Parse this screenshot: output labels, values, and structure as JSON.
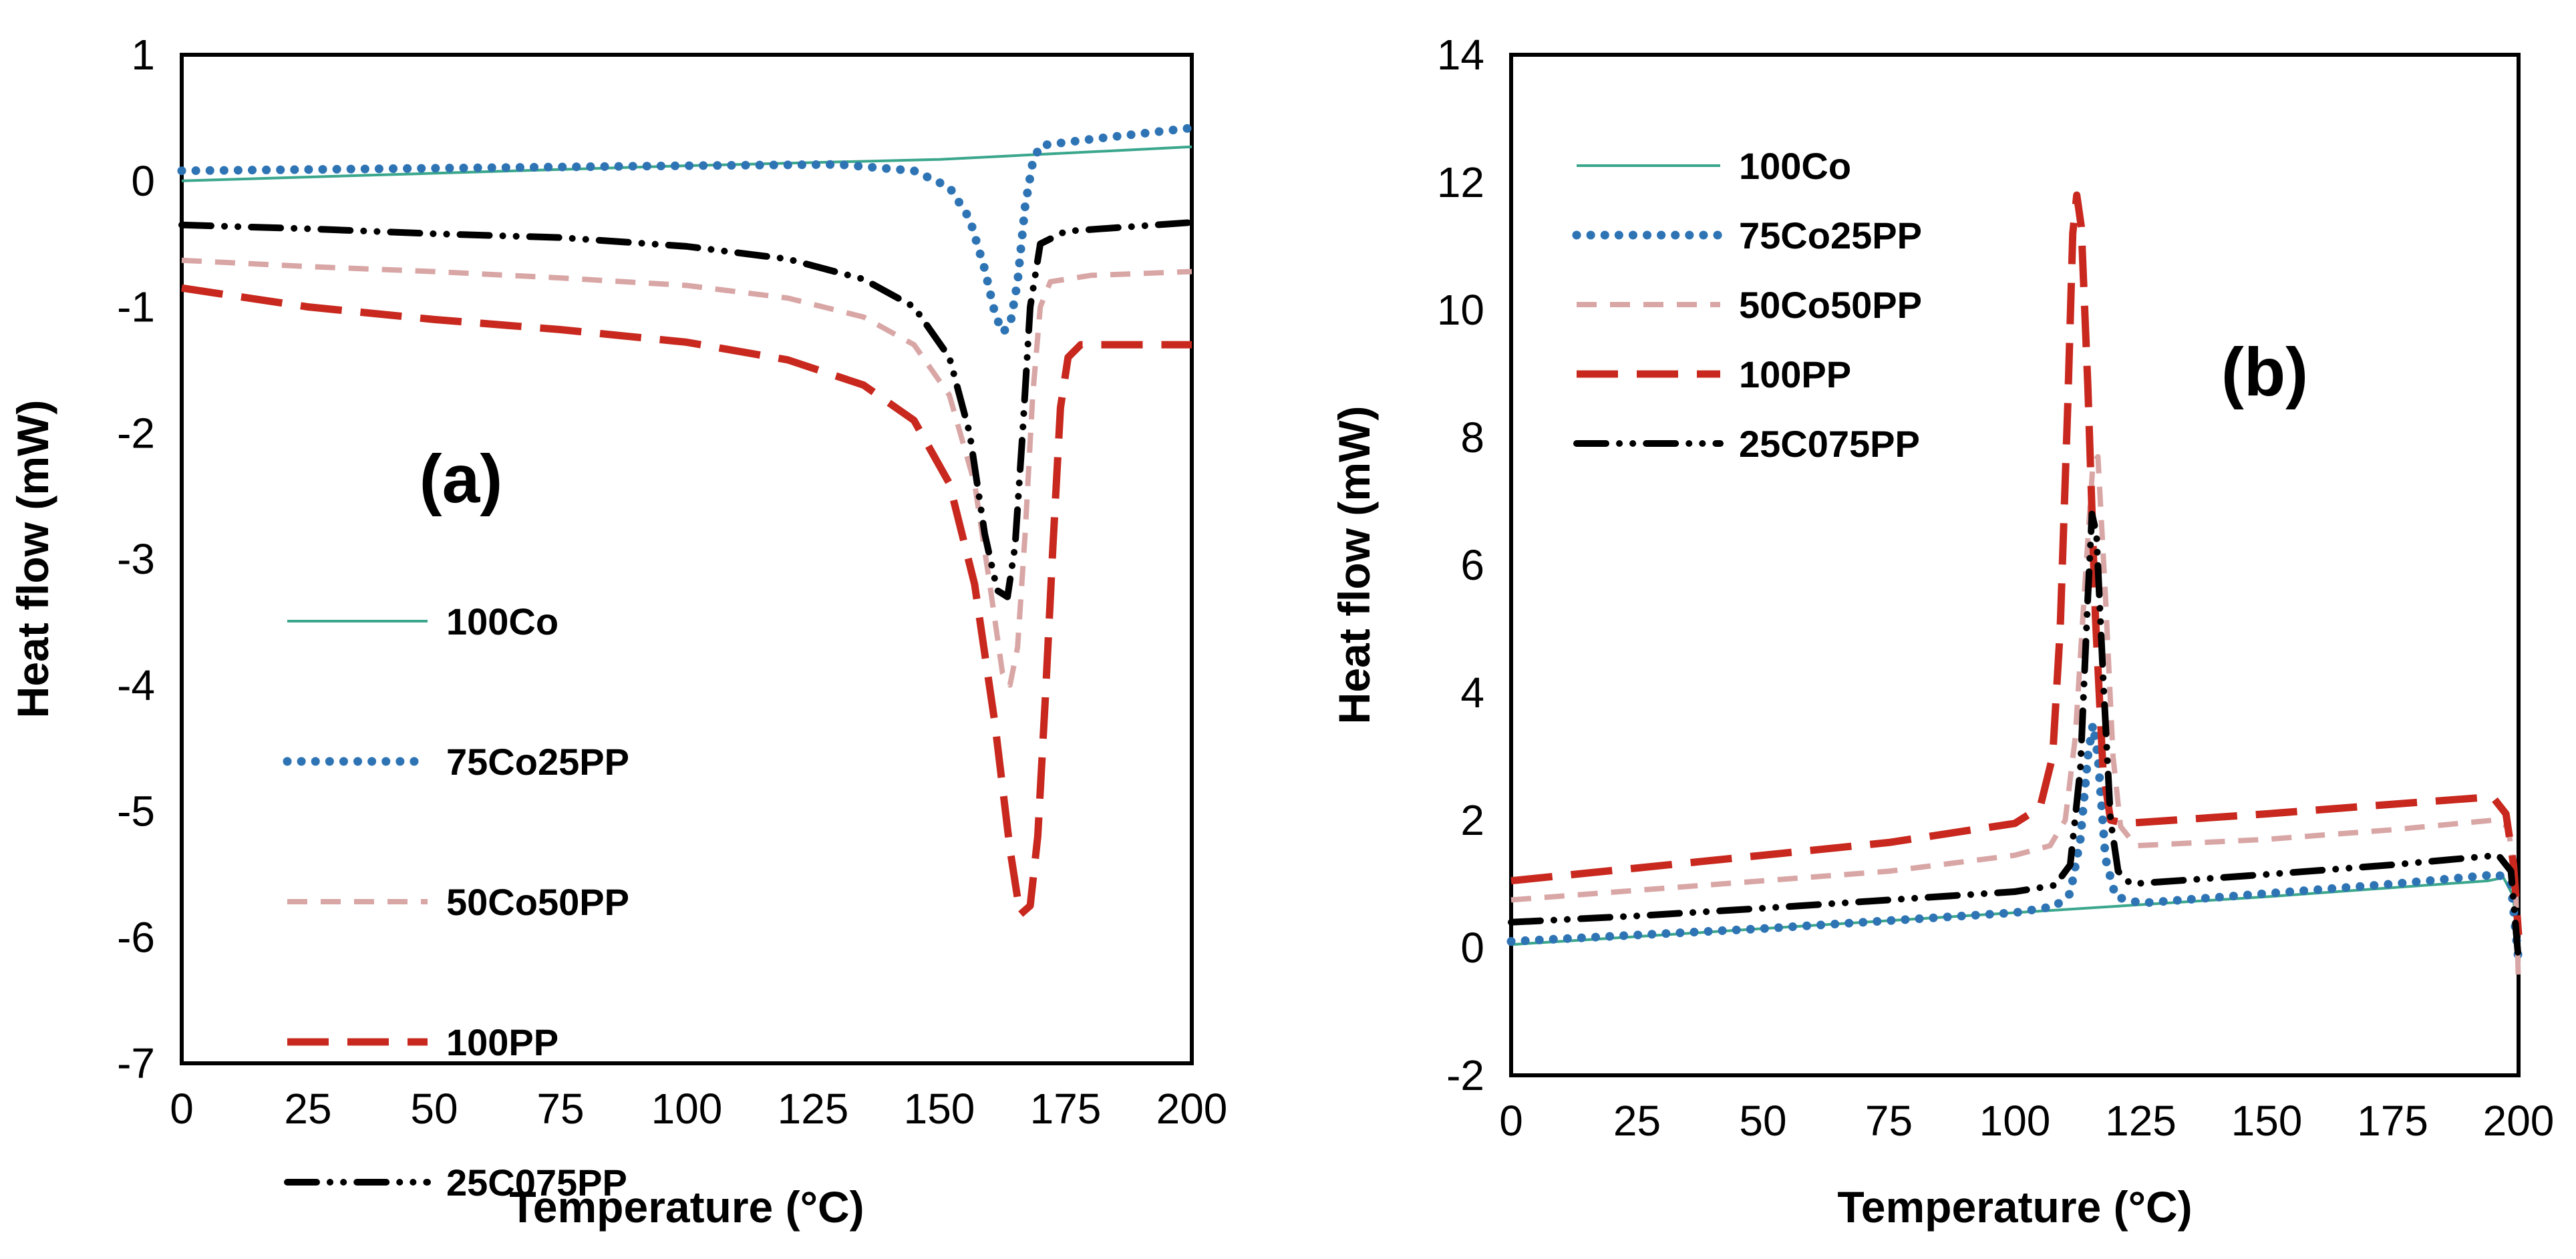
{
  "chart_data": [
    {
      "panel_label": "(a)",
      "type": "line",
      "xlabel": "Temperature (°C)",
      "ylabel": "Heat flow (mW)",
      "xlim": [
        0,
        200
      ],
      "ylim": [
        -7,
        1
      ],
      "x_ticks": [
        "0",
        "25",
        "50",
        "75",
        "100",
        "125",
        "150",
        "175",
        "200"
      ],
      "y_ticks": [
        "1",
        "0",
        "-1",
        "-2",
        "-3",
        "-4",
        "-5",
        "-6",
        "-7"
      ],
      "grid": false,
      "legend_position": "lower-left",
      "series": [
        {
          "name": "100Co",
          "color": "#3aa68c",
          "style": "solid",
          "points": [
            [
              0,
              0.0
            ],
            [
              50,
              0.06
            ],
            [
              100,
              0.12
            ],
            [
              150,
              0.17
            ],
            [
              200,
              0.27
            ]
          ]
        },
        {
          "name": "75Co25PP",
          "color": "#2e74b5",
          "style": "dotted",
          "points": [
            [
              0,
              0.08
            ],
            [
              50,
              0.1
            ],
            [
              100,
              0.12
            ],
            [
              130,
              0.13
            ],
            [
              145,
              0.08
            ],
            [
              152,
              -0.05
            ],
            [
              156,
              -0.3
            ],
            [
              159,
              -0.7
            ],
            [
              161,
              -1.05
            ],
            [
              162.5,
              -1.2
            ],
            [
              164,
              -1.15
            ],
            [
              165.5,
              -0.8
            ],
            [
              167,
              -0.2
            ],
            [
              168.5,
              0.15
            ],
            [
              170,
              0.28
            ],
            [
              180,
              0.33
            ],
            [
              200,
              0.42
            ]
          ]
        },
        {
          "name": "50Co50PP",
          "color": "#d9a6a6",
          "style": "dashed-short",
          "points": [
            [
              0,
              -0.63
            ],
            [
              25,
              -0.68
            ],
            [
              50,
              -0.72
            ],
            [
              75,
              -0.77
            ],
            [
              100,
              -0.83
            ],
            [
              120,
              -0.93
            ],
            [
              135,
              -1.08
            ],
            [
              145,
              -1.3
            ],
            [
              152,
              -1.7
            ],
            [
              157,
              -2.4
            ],
            [
              160,
              -3.2
            ],
            [
              162.5,
              -3.9
            ],
            [
              164,
              -4.0
            ],
            [
              165.5,
              -3.7
            ],
            [
              167,
              -2.8
            ],
            [
              168.5,
              -1.7
            ],
            [
              170,
              -1.0
            ],
            [
              172,
              -0.8
            ],
            [
              180,
              -0.75
            ],
            [
              200,
              -0.72
            ]
          ]
        },
        {
          "name": "100PP",
          "color": "#c8281e",
          "style": "dashed-long",
          "points": [
            [
              0,
              -0.85
            ],
            [
              25,
              -1.0
            ],
            [
              50,
              -1.1
            ],
            [
              75,
              -1.18
            ],
            [
              100,
              -1.28
            ],
            [
              120,
              -1.42
            ],
            [
              135,
              -1.62
            ],
            [
              145,
              -1.9
            ],
            [
              152,
              -2.4
            ],
            [
              157,
              -3.2
            ],
            [
              161,
              -4.3
            ],
            [
              164,
              -5.3
            ],
            [
              166,
              -5.82
            ],
            [
              168,
              -5.75
            ],
            [
              169.5,
              -5.2
            ],
            [
              171,
              -4.1
            ],
            [
              172.5,
              -2.9
            ],
            [
              174,
              -1.8
            ],
            [
              175.5,
              -1.4
            ],
            [
              178,
              -1.3
            ],
            [
              200,
              -1.3
            ]
          ]
        },
        {
          "name": "25C075PP",
          "color": "#000000",
          "style": "dash-dot-dot",
          "points": [
            [
              0,
              -0.35
            ],
            [
              25,
              -0.38
            ],
            [
              50,
              -0.42
            ],
            [
              75,
              -0.45
            ],
            [
              100,
              -0.52
            ],
            [
              120,
              -0.62
            ],
            [
              135,
              -0.78
            ],
            [
              145,
              -1.0
            ],
            [
              152,
              -1.4
            ],
            [
              156,
              -2.0
            ],
            [
              159,
              -2.8
            ],
            [
              161.5,
              -3.25
            ],
            [
              163.5,
              -3.3
            ],
            [
              165,
              -2.9
            ],
            [
              166.5,
              -2.0
            ],
            [
              168,
              -1.0
            ],
            [
              170,
              -0.5
            ],
            [
              175,
              -0.4
            ],
            [
              200,
              -0.33
            ]
          ]
        }
      ]
    },
    {
      "panel_label": "(b)",
      "type": "line",
      "xlabel": "Temperature (°C)",
      "ylabel": "Heat flow (mW)",
      "xlim": [
        0,
        200
      ],
      "ylim": [
        -2,
        14
      ],
      "x_ticks": [
        "0",
        "25",
        "50",
        "75",
        "100",
        "125",
        "150",
        "175",
        "200"
      ],
      "y_ticks": [
        "14",
        "12",
        "10",
        "8",
        "6",
        "4",
        "2",
        "0",
        "-2"
      ],
      "grid": false,
      "legend_position": "upper-left",
      "series": [
        {
          "name": "100Co",
          "color": "#3aa68c",
          "style": "solid",
          "points": [
            [
              0,
              0.05
            ],
            [
              50,
              0.3
            ],
            [
              100,
              0.55
            ],
            [
              150,
              0.8
            ],
            [
              194,
              1.05
            ],
            [
              197,
              1.1
            ],
            [
              199,
              0.8
            ],
            [
              200,
              -0.3
            ]
          ]
        },
        {
          "name": "75Co25PP",
          "color": "#2e74b5",
          "style": "dotted",
          "points": [
            [
              0,
              0.1
            ],
            [
              50,
              0.3
            ],
            [
              100,
              0.55
            ],
            [
              108,
              0.65
            ],
            [
              111,
              0.85
            ],
            [
              113,
              1.7
            ],
            [
              114.5,
              3.0
            ],
            [
              115.5,
              3.5
            ],
            [
              116.5,
              3.0
            ],
            [
              118,
              1.4
            ],
            [
              120,
              0.8
            ],
            [
              125,
              0.7
            ],
            [
              150,
              0.85
            ],
            [
              175,
              1.0
            ],
            [
              196,
              1.15
            ],
            [
              198.5,
              1.0
            ],
            [
              200,
              -0.2
            ]
          ]
        },
        {
          "name": "50Co50PP",
          "color": "#d9a6a6",
          "style": "dashed-short",
          "points": [
            [
              0,
              0.75
            ],
            [
              25,
              0.9
            ],
            [
              50,
              1.05
            ],
            [
              75,
              1.2
            ],
            [
              100,
              1.45
            ],
            [
              107,
              1.6
            ],
            [
              110,
              2.0
            ],
            [
              112,
              3.3
            ],
            [
              114,
              5.8
            ],
            [
              115.5,
              7.6
            ],
            [
              116.5,
              7.7
            ],
            [
              118,
              5.5
            ],
            [
              119.5,
              3.0
            ],
            [
              121,
              1.9
            ],
            [
              124,
              1.6
            ],
            [
              150,
              1.7
            ],
            [
              175,
              1.85
            ],
            [
              195,
              2.0
            ],
            [
              198,
              1.9
            ],
            [
              199.5,
              0.8
            ],
            [
              200,
              -0.6
            ]
          ]
        },
        {
          "name": "100PP",
          "color": "#c8281e",
          "style": "dashed-long",
          "points": [
            [
              0,
              1.05
            ],
            [
              25,
              1.25
            ],
            [
              50,
              1.45
            ],
            [
              75,
              1.65
            ],
            [
              100,
              1.95
            ],
            [
              105,
              2.2
            ],
            [
              107.5,
              3.0
            ],
            [
              109,
              5.0
            ],
            [
              110.5,
              8.5
            ],
            [
              111.5,
              11.2
            ],
            [
              112.3,
              11.8
            ],
            [
              113.2,
              11.3
            ],
            [
              114.5,
              8.8
            ],
            [
              116,
              5.2
            ],
            [
              117.5,
              2.8
            ],
            [
              119,
              2.0
            ],
            [
              122,
              1.95
            ],
            [
              150,
              2.1
            ],
            [
              175,
              2.25
            ],
            [
              192,
              2.35
            ],
            [
              195,
              2.35
            ],
            [
              197.5,
              2.1
            ],
            [
              199,
              1.3
            ],
            [
              200,
              0.2
            ]
          ]
        },
        {
          "name": "25C075PP",
          "color": "#000000",
          "style": "dash-dot-dot",
          "points": [
            [
              0,
              0.4
            ],
            [
              25,
              0.5
            ],
            [
              50,
              0.62
            ],
            [
              75,
              0.75
            ],
            [
              100,
              0.88
            ],
            [
              108,
              0.98
            ],
            [
              111,
              1.3
            ],
            [
              113,
              2.8
            ],
            [
              114.5,
              5.5
            ],
            [
              115.3,
              6.8
            ],
            [
              116.2,
              6.5
            ],
            [
              117.5,
              4.3
            ],
            [
              119,
              2.0
            ],
            [
              120.5,
              1.2
            ],
            [
              123,
              1.0
            ],
            [
              150,
              1.15
            ],
            [
              175,
              1.3
            ],
            [
              196,
              1.45
            ],
            [
              198.5,
              1.2
            ],
            [
              200,
              -0.2
            ]
          ]
        }
      ]
    }
  ]
}
